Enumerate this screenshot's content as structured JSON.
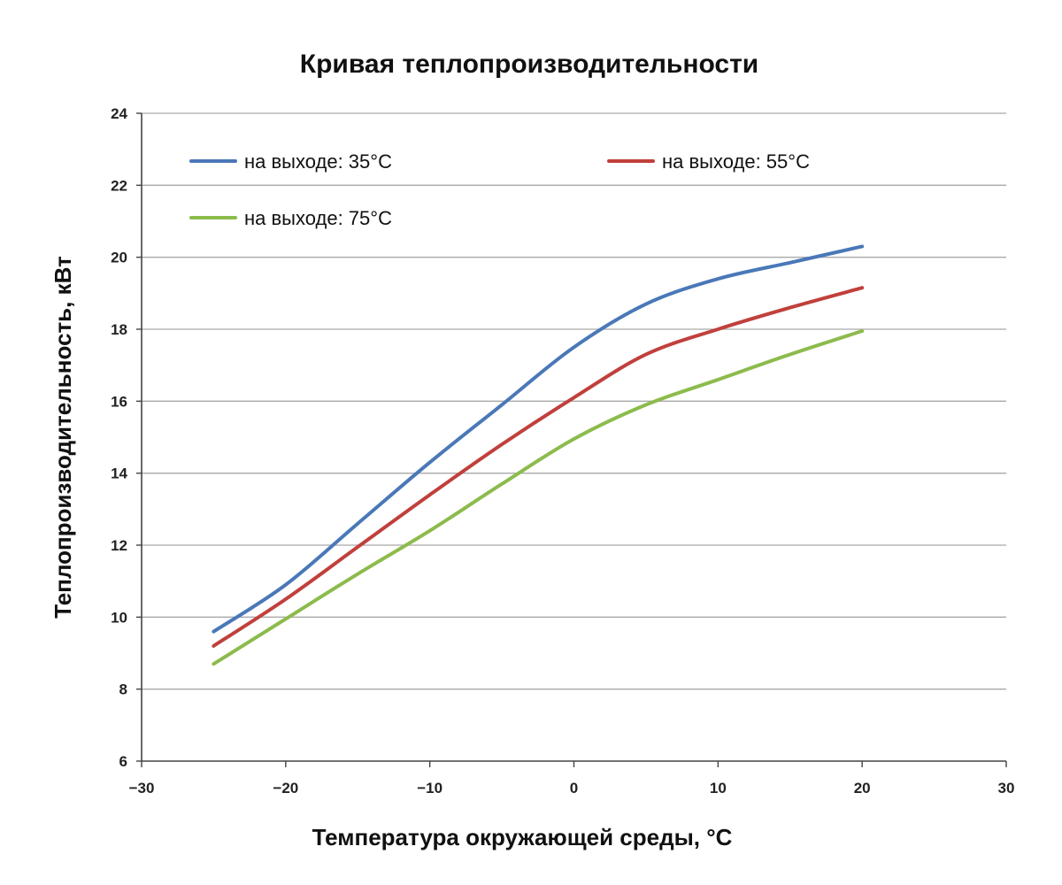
{
  "chart_data": {
    "type": "line",
    "title": "Кривая теплопроизводительности",
    "xlabel": "Температура окружающей среды, °C",
    "ylabel": "Теплопроизводительность, кВт",
    "xlim": [
      -30,
      30
    ],
    "ylim": [
      6,
      24
    ],
    "x_ticks": [
      -30,
      -20,
      -10,
      0,
      10,
      20,
      30
    ],
    "y_ticks": [
      6,
      8,
      10,
      12,
      14,
      16,
      18,
      20,
      22,
      24
    ],
    "x_tick_labels": [
      "−30",
      "−20",
      "−10",
      "0",
      "10",
      "20",
      "30"
    ],
    "y_tick_labels": [
      "6",
      "8",
      "10",
      "12",
      "14",
      "16",
      "18",
      "20",
      "22",
      "24"
    ],
    "grid": "horizontal",
    "legend_position": "top-left",
    "series": [
      {
        "name": "на выходе: 35°C",
        "color": "#4a78b8",
        "x": [
          -25,
          -20,
          -15,
          -10,
          -5,
          0,
          5,
          10,
          15,
          20
        ],
        "y": [
          9.6,
          10.9,
          12.6,
          14.3,
          15.9,
          17.5,
          18.7,
          19.4,
          19.85,
          20.3
        ]
      },
      {
        "name": "на выходе: 55°C",
        "color": "#c0403c",
        "x": [
          -25,
          -20,
          -15,
          -10,
          -5,
          0,
          5,
          10,
          15,
          20
        ],
        "y": [
          9.2,
          10.5,
          11.95,
          13.4,
          14.8,
          16.1,
          17.3,
          18.0,
          18.6,
          19.15
        ]
      },
      {
        "name": "на выходе: 75°C",
        "color": "#8cbb4c",
        "x": [
          -25,
          -20,
          -15,
          -10,
          -5,
          0,
          5,
          10,
          15,
          20
        ],
        "y": [
          8.7,
          9.95,
          11.2,
          12.4,
          13.7,
          14.95,
          15.9,
          16.6,
          17.3,
          17.95
        ]
      }
    ]
  }
}
